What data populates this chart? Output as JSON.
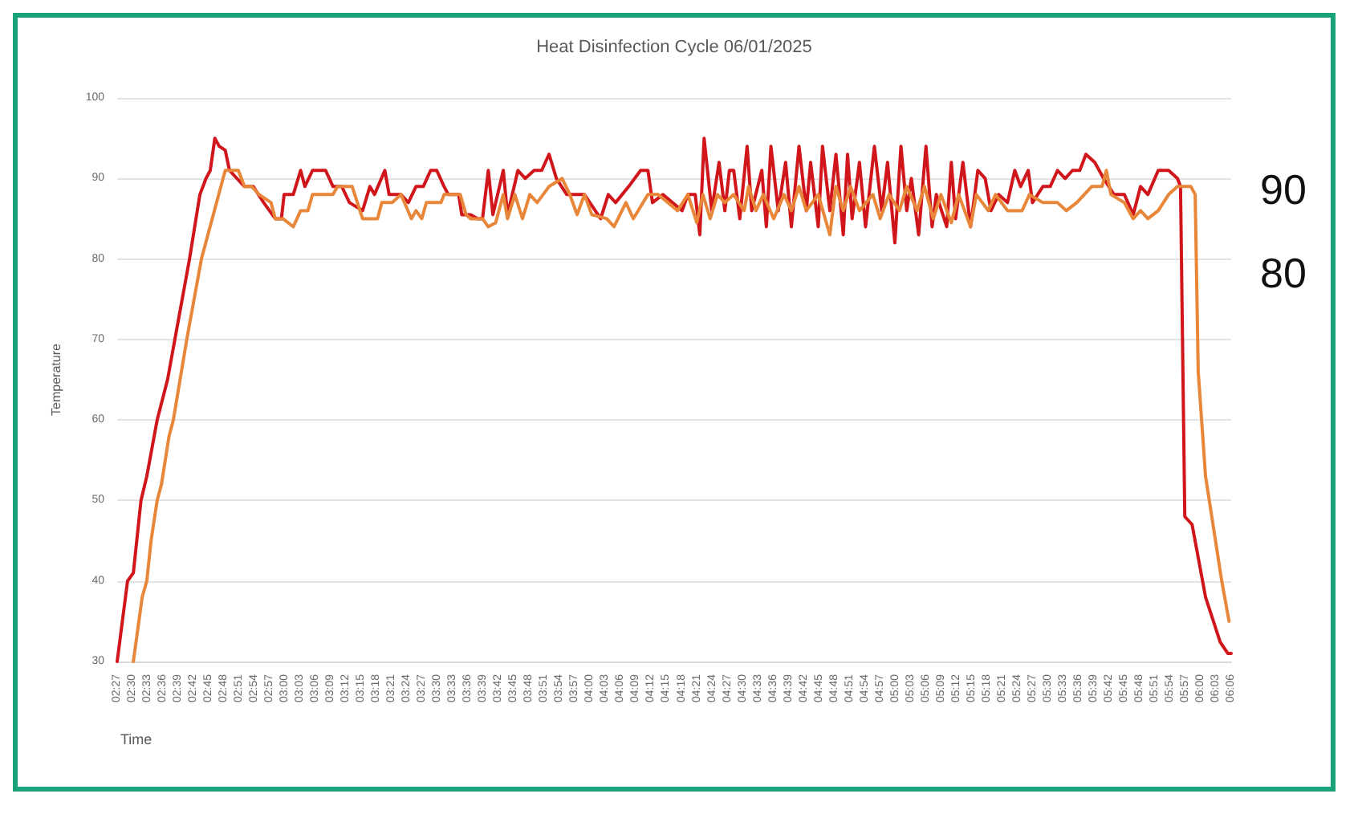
{
  "chart_data": {
    "type": "line",
    "title": "Heat Disinfection Cycle 06/01/2025",
    "xlabel": "Time",
    "ylabel": "Temperature",
    "annotations": [
      "90",
      "80"
    ],
    "xlim": [
      2.45,
      6.1
    ],
    "ylim": [
      30,
      100
    ],
    "yticks": [
      30,
      40,
      50,
      60,
      70,
      80,
      90,
      100
    ],
    "xticks": [
      {
        "value": 2.45,
        "label": "02:27"
      },
      {
        "value": 2.5,
        "label": "02:30"
      },
      {
        "value": 2.55,
        "label": "02:33"
      },
      {
        "value": 2.6,
        "label": "02:36"
      },
      {
        "value": 2.65,
        "label": "02:39"
      },
      {
        "value": 2.7,
        "label": "02:42"
      },
      {
        "value": 2.75,
        "label": "02:45"
      },
      {
        "value": 2.8,
        "label": "02:48"
      },
      {
        "value": 2.85,
        "label": "02:51"
      },
      {
        "value": 2.9,
        "label": "02:54"
      },
      {
        "value": 2.95,
        "label": "02:57"
      },
      {
        "value": 3,
        "label": "03:00"
      },
      {
        "value": 3.05,
        "label": "03:03"
      },
      {
        "value": 3.1,
        "label": "03:06"
      },
      {
        "value": 3.15,
        "label": "03:09"
      },
      {
        "value": 3.2,
        "label": "03:12"
      },
      {
        "value": 3.25,
        "label": "03:15"
      },
      {
        "value": 3.3,
        "label": "03:18"
      },
      {
        "value": 3.35,
        "label": "03:21"
      },
      {
        "value": 3.4,
        "label": "03:24"
      },
      {
        "value": 3.45,
        "label": "03:27"
      },
      {
        "value": 3.5,
        "label": "03:30"
      },
      {
        "value": 3.55,
        "label": "03:33"
      },
      {
        "value": 3.6,
        "label": "03:36"
      },
      {
        "value": 3.65,
        "label": "03:39"
      },
      {
        "value": 3.7,
        "label": "03:42"
      },
      {
        "value": 3.75,
        "label": "03:45"
      },
      {
        "value": 3.8,
        "label": "03:48"
      },
      {
        "value": 3.85,
        "label": "03:51"
      },
      {
        "value": 3.9,
        "label": "03:54"
      },
      {
        "value": 3.95,
        "label": "03:57"
      },
      {
        "value": 4,
        "label": "04:00"
      },
      {
        "value": 4.05,
        "label": "04:03"
      },
      {
        "value": 4.1,
        "label": "04:06"
      },
      {
        "value": 4.15,
        "label": "04:09"
      },
      {
        "value": 4.2,
        "label": "04:12"
      },
      {
        "value": 4.25,
        "label": "04:15"
      },
      {
        "value": 4.3,
        "label": "04:18"
      },
      {
        "value": 4.35,
        "label": "04:21"
      },
      {
        "value": 4.4,
        "label": "04:24"
      },
      {
        "value": 4.45,
        "label": "04:27"
      },
      {
        "value": 4.5,
        "label": "04:30"
      },
      {
        "value": 4.55,
        "label": "04:33"
      },
      {
        "value": 4.6,
        "label": "04:36"
      },
      {
        "value": 4.65,
        "label": "04:39"
      },
      {
        "value": 4.7,
        "label": "04:42"
      },
      {
        "value": 4.75,
        "label": "04:45"
      },
      {
        "value": 4.8,
        "label": "04:48"
      },
      {
        "value": 4.85,
        "label": "04:51"
      },
      {
        "value": 4.9,
        "label": "04:54"
      },
      {
        "value": 4.95,
        "label": "04:57"
      },
      {
        "value": 5,
        "label": "05:00"
      },
      {
        "value": 5.05,
        "label": "05:03"
      },
      {
        "value": 5.1,
        "label": "05:06"
      },
      {
        "value": 5.15,
        "label": "05:09"
      },
      {
        "value": 5.2,
        "label": "05:12"
      },
      {
        "value": 5.25,
        "label": "05:15"
      },
      {
        "value": 5.3,
        "label": "05:18"
      },
      {
        "value": 5.35,
        "label": "05:21"
      },
      {
        "value": 5.4,
        "label": "05:24"
      },
      {
        "value": 5.45,
        "label": "05:27"
      },
      {
        "value": 5.5,
        "label": "05:30"
      },
      {
        "value": 5.55,
        "label": "05:33"
      },
      {
        "value": 5.6,
        "label": "05:36"
      },
      {
        "value": 5.65,
        "label": "05:39"
      },
      {
        "value": 5.7,
        "label": "05:42"
      },
      {
        "value": 5.75,
        "label": "05:45"
      },
      {
        "value": 5.8,
        "label": "05:48"
      },
      {
        "value": 5.85,
        "label": "05:51"
      },
      {
        "value": 5.9,
        "label": "05:54"
      },
      {
        "value": 5.95,
        "label": "05:57"
      },
      {
        "value": 6,
        "label": "06:00"
      },
      {
        "value": 6.05,
        "label": "06:03"
      },
      {
        "value": 6.1,
        "label": "06:06"
      }
    ],
    "grid": "y",
    "marker": "none",
    "line_style": "solid",
    "series": [
      {
        "color": "#d0151b",
        "x": [
          2.45,
          2.484,
          2.503,
          2.528,
          2.547,
          2.581,
          2.615,
          2.639,
          2.687,
          2.721,
          2.741,
          2.755,
          2.77,
          2.784,
          2.804,
          2.818,
          2.867,
          2.896,
          2.93,
          2.968,
          2.988,
          2.997,
          3.027,
          3.051,
          3.065,
          3.09,
          3.133,
          3.157,
          3.186,
          3.211,
          3.254,
          3.278,
          3.293,
          3.327,
          3.341,
          3.38,
          3.404,
          3.429,
          3.453,
          3.477,
          3.497,
          3.521,
          3.535,
          3.569,
          3.579,
          3.608,
          3.632,
          3.647,
          3.666,
          3.681,
          3.715,
          3.729,
          3.763,
          3.787,
          3.816,
          3.841,
          3.865,
          3.889,
          3.923,
          3.981,
          4.034,
          4.059,
          4.083,
          4.126,
          4.165,
          4.189,
          4.204,
          4.238,
          4.301,
          4.32,
          4.344,
          4.359,
          4.373,
          4.398,
          4.422,
          4.441,
          4.456,
          4.47,
          4.49,
          4.514,
          4.529,
          4.562,
          4.577,
          4.592,
          4.616,
          4.64,
          4.659,
          4.684,
          4.708,
          4.722,
          4.747,
          4.761,
          4.785,
          4.805,
          4.829,
          4.843,
          4.858,
          4.882,
          4.902,
          4.931,
          4.955,
          4.974,
          4.998,
          5.018,
          5.037,
          5.052,
          5.076,
          5.1,
          5.12,
          5.134,
          5.168,
          5.183,
          5.197,
          5.221,
          5.246,
          5.27,
          5.294,
          5.313,
          5.338,
          5.367,
          5.391,
          5.41,
          5.435,
          5.449,
          5.483,
          5.507,
          5.531,
          5.556,
          5.58,
          5.604,
          5.624,
          5.653,
          5.682,
          5.716,
          5.75,
          5.779,
          5.803,
          5.827,
          5.861,
          5.895,
          5.924,
          5.934,
          5.948,
          5.972,
          6.016,
          6.064,
          6.089,
          6.1
        ],
        "values": [
          30,
          40,
          41,
          50,
          53,
          60,
          65,
          70,
          80,
          88,
          90,
          91,
          95,
          94,
          93.5,
          91,
          89,
          89,
          87,
          85,
          85,
          88,
          88,
          91,
          89,
          91,
          91,
          89,
          89,
          87,
          86,
          89,
          88,
          91,
          88,
          88,
          87,
          89,
          89,
          91,
          91,
          89,
          88,
          88,
          85.5,
          85.5,
          85,
          85,
          91,
          85.5,
          91,
          85.5,
          91,
          90,
          91,
          91,
          93,
          90,
          88,
          88,
          85,
          88,
          87,
          89,
          91,
          91,
          87,
          88,
          86,
          88,
          88,
          83,
          95,
          86,
          92,
          86,
          91,
          91,
          85,
          94,
          86,
          91,
          84,
          94,
          86,
          92,
          84,
          94,
          86,
          92,
          84,
          94,
          86,
          93,
          83,
          93,
          85,
          92,
          84,
          94,
          86,
          92,
          82,
          94,
          86,
          90,
          83,
          94,
          84,
          88,
          84,
          92,
          85,
          92,
          84,
          91,
          90,
          86,
          88,
          87,
          91,
          89,
          91,
          87,
          89,
          89,
          91,
          90,
          91,
          91,
          93,
          92,
          90,
          88,
          88,
          85.5,
          89,
          88,
          91,
          91,
          90,
          89,
          48,
          47,
          38,
          32.4,
          31,
          31
        ]
      },
      {
        "color": "#e8873a",
        "x": [
          2.503,
          2.532,
          2.547,
          2.561,
          2.581,
          2.595,
          2.62,
          2.634,
          2.678,
          2.726,
          2.804,
          2.847,
          2.867,
          2.891,
          2.915,
          2.954,
          2.968,
          2.993,
          3.027,
          3.051,
          3.075,
          3.09,
          3.157,
          3.172,
          3.22,
          3.254,
          3.303,
          3.317,
          3.351,
          3.38,
          3.414,
          3.429,
          3.448,
          3.463,
          3.511,
          3.521,
          3.574,
          3.593,
          3.608,
          3.647,
          3.666,
          3.69,
          3.715,
          3.729,
          3.753,
          3.778,
          3.802,
          3.826,
          3.865,
          3.908,
          3.933,
          3.957,
          3.981,
          4.005,
          4.054,
          4.078,
          4.117,
          4.141,
          4.189,
          4.223,
          4.286,
          4.32,
          4.349,
          4.369,
          4.393,
          4.417,
          4.441,
          4.47,
          4.504,
          4.519,
          4.543,
          4.567,
          4.601,
          4.635,
          4.659,
          4.684,
          4.708,
          4.747,
          4.785,
          4.805,
          4.829,
          4.853,
          4.882,
          4.926,
          4.95,
          4.979,
          5.013,
          5.037,
          5.071,
          5.095,
          5.124,
          5.149,
          5.183,
          5.207,
          5.246,
          5.265,
          5.304,
          5.328,
          5.367,
          5.415,
          5.439,
          5.483,
          5.531,
          5.56,
          5.594,
          5.643,
          5.677,
          5.691,
          5.706,
          5.75,
          5.779,
          5.803,
          5.827,
          5.861,
          5.895,
          5.924,
          5.968,
          5.982,
          5.992,
          6.016,
          6.069,
          6.093
        ],
        "values": [
          30,
          38,
          40,
          45,
          50,
          52,
          58,
          60,
          70,
          80,
          91,
          91,
          89,
          89,
          88,
          87,
          85,
          85,
          84,
          86,
          86,
          88,
          88,
          89,
          89,
          85,
          85,
          87,
          87,
          88,
          85,
          86,
          85,
          87,
          87,
          88,
          88,
          85.5,
          85,
          85,
          84,
          84.5,
          88,
          85,
          88,
          85,
          88,
          87,
          89,
          90,
          88,
          85.5,
          88,
          85.5,
          85,
          84,
          87,
          85,
          88,
          88,
          86,
          88,
          84.5,
          88,
          85,
          88,
          87,
          88,
          86,
          89,
          86,
          88,
          85,
          88,
          86,
          89,
          86,
          88,
          83,
          89,
          86,
          89,
          86,
          88,
          85,
          88,
          86,
          89,
          86,
          89,
          85,
          88,
          84.5,
          88,
          84,
          88,
          86,
          88,
          86,
          86,
          88,
          87,
          87,
          86,
          87,
          89,
          89,
          91,
          88,
          87,
          85,
          86,
          85,
          86,
          88,
          89,
          89,
          88,
          66,
          53,
          40,
          35
        ]
      }
    ]
  }
}
